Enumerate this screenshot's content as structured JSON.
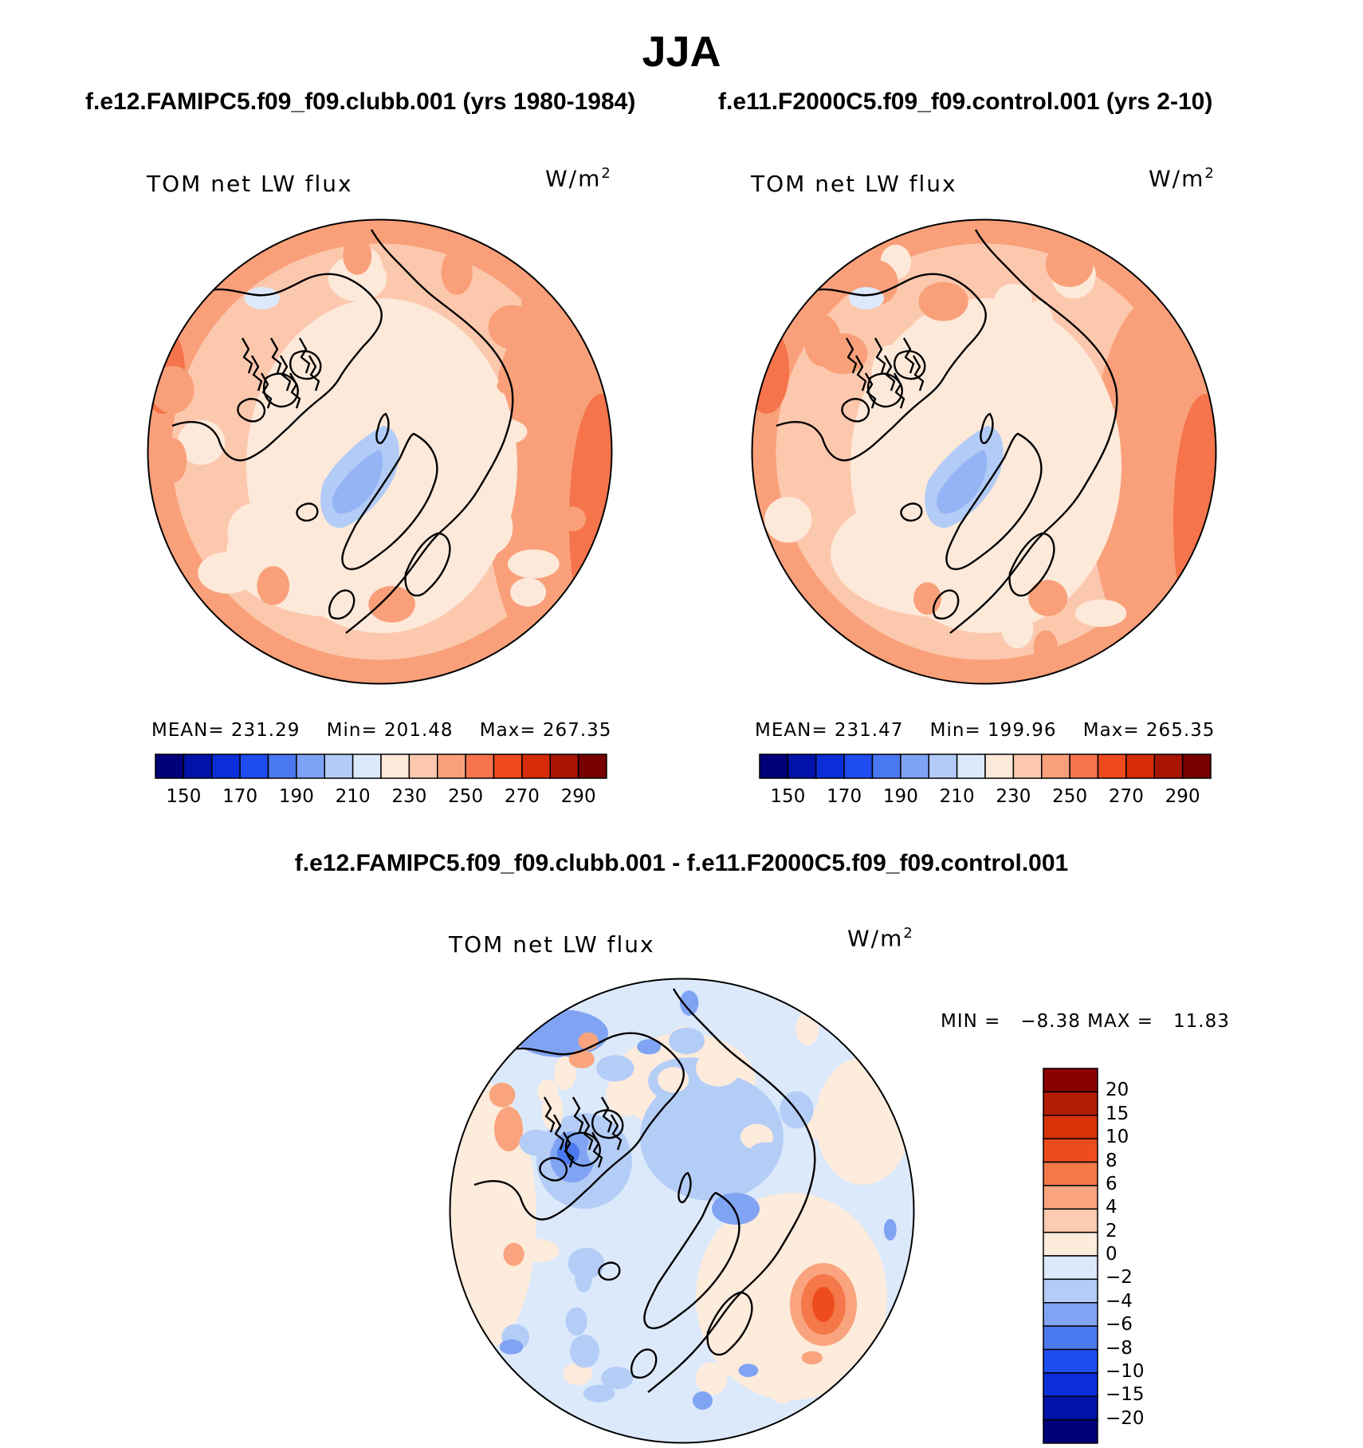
{
  "title": "JJA",
  "panels": [
    {
      "case_title": "f.e12.FAMIPC5.f09_f09.clubb.001 (yrs 1980-1984)",
      "variable": "TOM net LW flux",
      "units": "W/m",
      "units_exp": "2",
      "mean_label": "MEAN=",
      "mean": "231.29",
      "min_label": "Min=",
      "min": "201.48",
      "max_label": "Max=",
      "max": "267.35"
    },
    {
      "case_title": "f.e11.F2000C5.f09_f09.control.001 (yrs 2-10)",
      "variable": "TOM net LW flux",
      "units": "W/m",
      "units_exp": "2",
      "mean_label": "MEAN=",
      "mean": "231.47",
      "min_label": "Min=",
      "min": "199.96",
      "max_label": "Max=",
      "max": "265.35"
    },
    {
      "case_title": "f.e12.FAMIPC5.f09_f09.clubb.001 - f.e11.F2000C5.f09_f09.control.001",
      "variable": "TOM net LW flux",
      "units": "W/m",
      "units_exp": "2",
      "min_label": "MIN =",
      "min": "−8.38",
      "max_label": "MAX =",
      "max": "11.83"
    }
  ],
  "chart_data": [
    {
      "type": "heatmap",
      "projection": "north-polar-stereographic",
      "title": "TOM net LW flux",
      "units": "W/m2",
      "colorbar_orientation": "horizontal",
      "colorbar_ticks": [
        "150",
        "170",
        "190",
        "210",
        "230",
        "250",
        "270",
        "290"
      ],
      "colorbar_colors": [
        "#00007a",
        "#0012a8",
        "#0a2ed8",
        "#1e4cf0",
        "#4a78f0",
        "#7ea2f4",
        "#b2cbf7",
        "#dce9fb",
        "#fde9da",
        "#fcc8ad",
        "#f9a07a",
        "#f5744c",
        "#ee4a1e",
        "#d62b08",
        "#a81404",
        "#780000"
      ],
      "mean": 231.29,
      "min": 201.48,
      "max": 267.35
    },
    {
      "type": "heatmap",
      "projection": "north-polar-stereographic",
      "title": "TOM net LW flux",
      "units": "W/m2",
      "colorbar_orientation": "horizontal",
      "colorbar_ticks": [
        "150",
        "170",
        "190",
        "210",
        "230",
        "250",
        "270",
        "290"
      ],
      "colorbar_colors": [
        "#00007a",
        "#0012a8",
        "#0a2ed8",
        "#1e4cf0",
        "#4a78f0",
        "#7ea2f4",
        "#b2cbf7",
        "#dce9fb",
        "#fde9da",
        "#fcc8ad",
        "#f9a07a",
        "#f5744c",
        "#ee4a1e",
        "#d62b08",
        "#a81404",
        "#780000"
      ],
      "mean": 231.47,
      "min": 199.96,
      "max": 265.35
    },
    {
      "type": "heatmap",
      "projection": "north-polar-stereographic",
      "title": "TOM net LW flux",
      "units": "W/m2",
      "colorbar_orientation": "vertical",
      "colorbar_ticks": [
        "20",
        "15",
        "10",
        "8",
        "6",
        "4",
        "2",
        "0",
        "−2",
        "−4",
        "−6",
        "−8",
        "−10",
        "−15",
        "−20"
      ],
      "colorbar_colors": [
        "#8a0000",
        "#b11d04",
        "#d83208",
        "#ef4c1d",
        "#f5784a",
        "#f9a47e",
        "#fccbb0",
        "#fdebdc",
        "#dbe9fb",
        "#b4cdf7",
        "#80a4f3",
        "#4b7af0",
        "#1f4cf0",
        "#0a2ed8",
        "#0012a8",
        "#00007a"
      ],
      "min": -8.38,
      "max": 11.83
    }
  ]
}
